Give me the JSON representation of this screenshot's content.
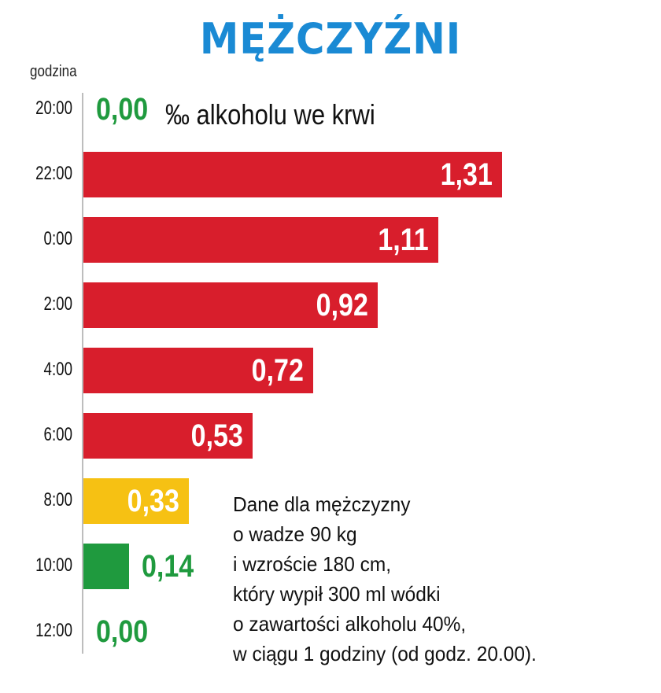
{
  "title": "MĘŻCZYŹNI",
  "chart_data": {
    "type": "bar",
    "orientation": "horizontal",
    "title": "MĘŻCZYŹNI",
    "ylabel": "godzina",
    "xlabel": "",
    "unit_note": "‰ alkoholu we krwi",
    "categories": [
      "20:00",
      "22:00",
      "0:00",
      "2:00",
      "4:00",
      "6:00",
      "8:00",
      "10:00",
      "12:00"
    ],
    "values": [
      0.0,
      1.31,
      1.11,
      0.92,
      0.72,
      0.53,
      0.33,
      0.14,
      0.0
    ],
    "value_labels": [
      "0,00",
      "1,31",
      "1,11",
      "0,92",
      "0,72",
      "0,53",
      "0,33",
      "0,14",
      "0,00"
    ],
    "bar_colors": [
      "#1f9a3e",
      "#d81e2c",
      "#d81e2c",
      "#d81e2c",
      "#d81e2c",
      "#d81e2c",
      "#f6c113",
      "#1f9a3e",
      "#1f9a3e"
    ],
    "xlim": [
      0,
      1.42
    ],
    "grid": false,
    "legend": "none"
  },
  "note": [
    "Dane dla mężczyzny",
    "o wadze 90 kg",
    "i wzroście 180 cm,",
    "który wypił 300 ml wódki",
    "o zawartości alkoholu 40%,",
    "w ciągu 1 godziny (od godz. 20.00)."
  ],
  "colors": {
    "title": "#1a8ad4",
    "red": "#d81e2c",
    "yellow": "#f6c113",
    "green": "#1f9a3e"
  }
}
